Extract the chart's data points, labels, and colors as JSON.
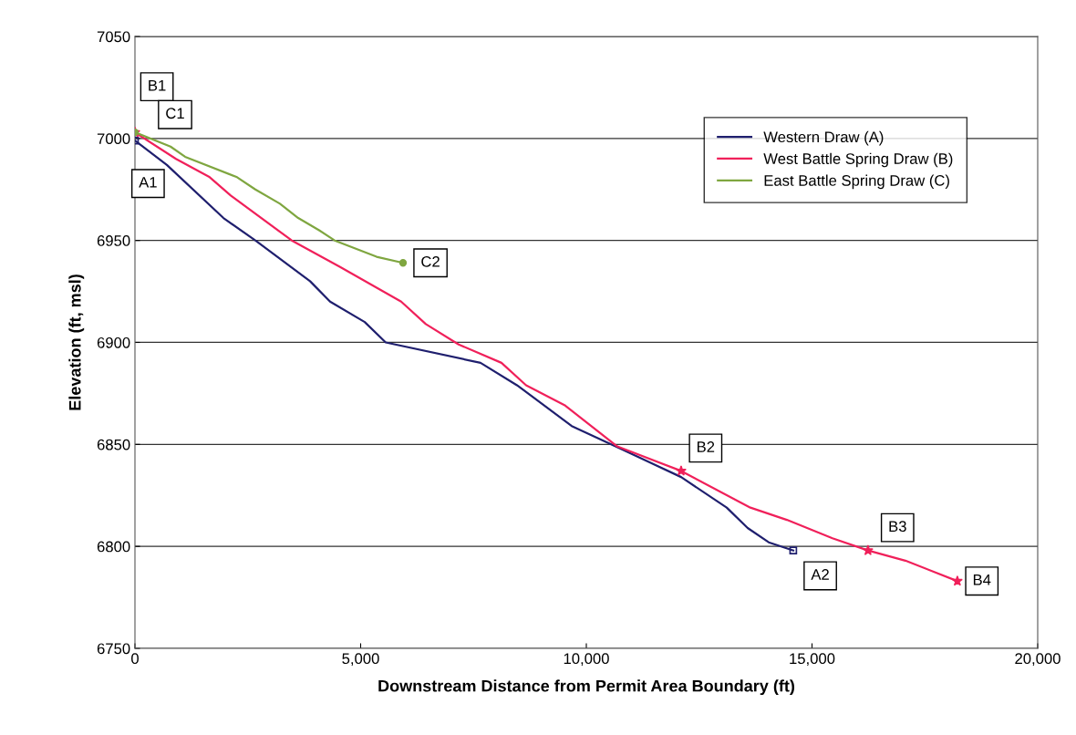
{
  "chart_data": {
    "type": "line",
    "xlabel": "Downstream Distance from Permit Area Boundary (ft)",
    "ylabel": "Elevation (ft, msl)",
    "xlim": [
      0,
      20000
    ],
    "ylim": [
      6750,
      7050
    ],
    "xticks": [
      0,
      {
        "value": 5000,
        "label": "5,000"
      },
      {
        "value": 10000,
        "label": "10,000"
      },
      {
        "value": 15000,
        "label": "15,000"
      },
      {
        "value": 20000,
        "label": "20,000"
      }
    ],
    "yticks": [
      6750,
      6800,
      6850,
      6900,
      6950,
      7000,
      7050
    ],
    "grid": "y",
    "legend": "top right",
    "series": [
      {
        "name": "Western Draw (A)",
        "color": "#1f1f6e",
        "x": [
          0,
          707,
          1960,
          2667,
          3880,
          4323,
          5090,
          5555,
          7656,
          8464,
          9676,
          10746,
          12100,
          13110,
          13574,
          14040,
          14584
        ],
        "values": [
          6999,
          6987,
          6961,
          6950,
          6930,
          6920,
          6910,
          6900,
          6890,
          6879,
          6859,
          6848,
          6834,
          6819,
          6809,
          6802,
          6798
        ]
      },
      {
        "name": "West Battle Spring Draw (B)",
        "color": "#f0205a",
        "x": [
          0,
          909,
          1656,
          2121,
          3474,
          4545,
          5898,
          6444,
          7171,
          8120,
          8666,
          9534,
          10686,
          12100,
          13635,
          14443,
          15453,
          16240,
          17069,
          18220
        ],
        "values": [
          7003,
          6990,
          6981,
          6972,
          6950,
          6937,
          6920,
          6909,
          6899,
          6890,
          6879,
          6869,
          6849,
          6837,
          6819,
          6813,
          6804,
          6798,
          6793,
          6783
        ]
      },
      {
        "name": "East Battle Spring Draw (C)",
        "color": "#7fa640",
        "x": [
          0,
          788,
          1111,
          2262,
          2667,
          3212,
          3616,
          4080,
          4424,
          5353,
          5939
        ],
        "values": [
          7003,
          6996,
          6991,
          6981,
          6975,
          6968,
          6961,
          6955,
          6950,
          6942,
          6939
        ]
      },
      {
        "type": "scatter",
        "color": "#1f1f6e",
        "marker": "square",
        "x": [
          0,
          14584
        ],
        "values": [
          6999,
          6798
        ]
      },
      {
        "type": "scatter",
        "color": "#f0205a",
        "marker": "star",
        "x": [
          0,
          12100,
          16240,
          18220
        ],
        "values": [
          7003,
          6837,
          6798,
          6783
        ]
      },
      {
        "type": "scatter",
        "color": "#7fa640",
        "marker": "circle",
        "x": [
          0,
          5939
        ],
        "values": [
          7003,
          6939
        ]
      }
    ],
    "annotations": [
      {
        "text": "B1",
        "x": 0,
        "y": 7003
      },
      {
        "text": "C1",
        "x": 0,
        "y": 7003
      },
      {
        "text": "A1",
        "x": 0,
        "y": 6999
      },
      {
        "text": "C2",
        "x": 5939,
        "y": 6939
      },
      {
        "text": "B2",
        "x": 12100,
        "y": 6837
      },
      {
        "text": "B3",
        "x": 16240,
        "y": 6798
      },
      {
        "text": "A2",
        "x": 14584,
        "y": 6798
      },
      {
        "text": "B4",
        "x": 18220,
        "y": 6783
      }
    ]
  }
}
